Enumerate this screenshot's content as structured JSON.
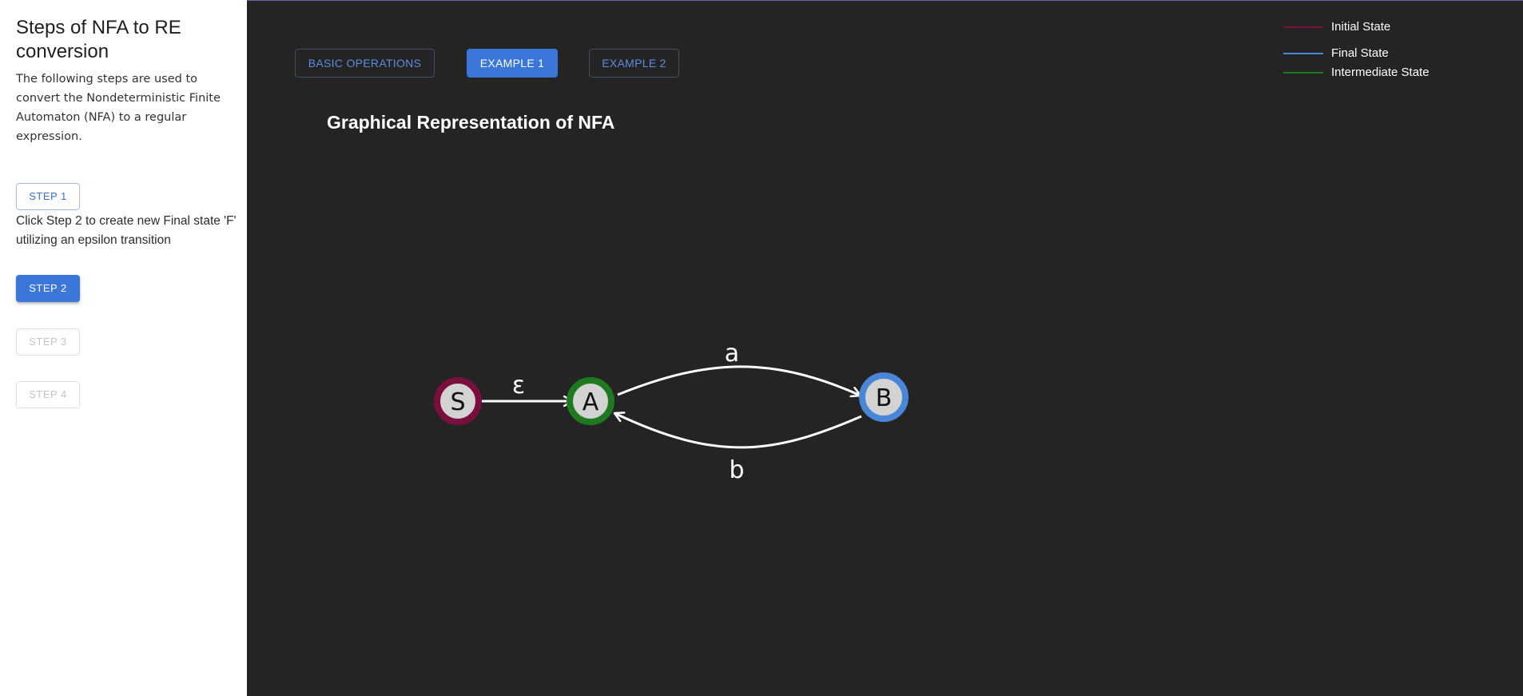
{
  "sidebar": {
    "title": "Steps of NFA to RE conversion",
    "intro": "The following steps are used to convert the Nondeterministic Finite Automaton (NFA) to a regular expression.",
    "step1_label": "STEP 1",
    "hint": "Click Step 2 to create new Final state 'F' utilizing an epsilon transition",
    "step2_label": "STEP 2",
    "step3_label": "STEP 3",
    "step4_label": "STEP 4"
  },
  "top_buttons": {
    "basic_label": "BASIC OPERATIONS",
    "example1_label": "EXAMPLE 1",
    "example2_label": "EXAMPLE 2"
  },
  "graph": {
    "title": "Graphical Representation of NFA",
    "states": [
      {
        "name": "S",
        "type": "initial"
      },
      {
        "name": "A",
        "type": "intermediate"
      },
      {
        "name": "B",
        "type": "final"
      }
    ],
    "transitions": [
      {
        "from": "S",
        "to": "A",
        "label": "ε"
      },
      {
        "from": "A",
        "to": "B",
        "label": "a"
      },
      {
        "from": "B",
        "to": "A",
        "label": "b"
      }
    ]
  },
  "legend": {
    "initial_label": "Initial State",
    "final_label": "Final State",
    "intermediate_label": "Intermediate State"
  },
  "colors": {
    "initial": "#7a0f3f",
    "final": "#4a86d8",
    "intermediate": "#1f7a1f",
    "accent": "#3a77d8",
    "canvas_bg": "#242424",
    "node_fill": "#d3d3d3"
  }
}
